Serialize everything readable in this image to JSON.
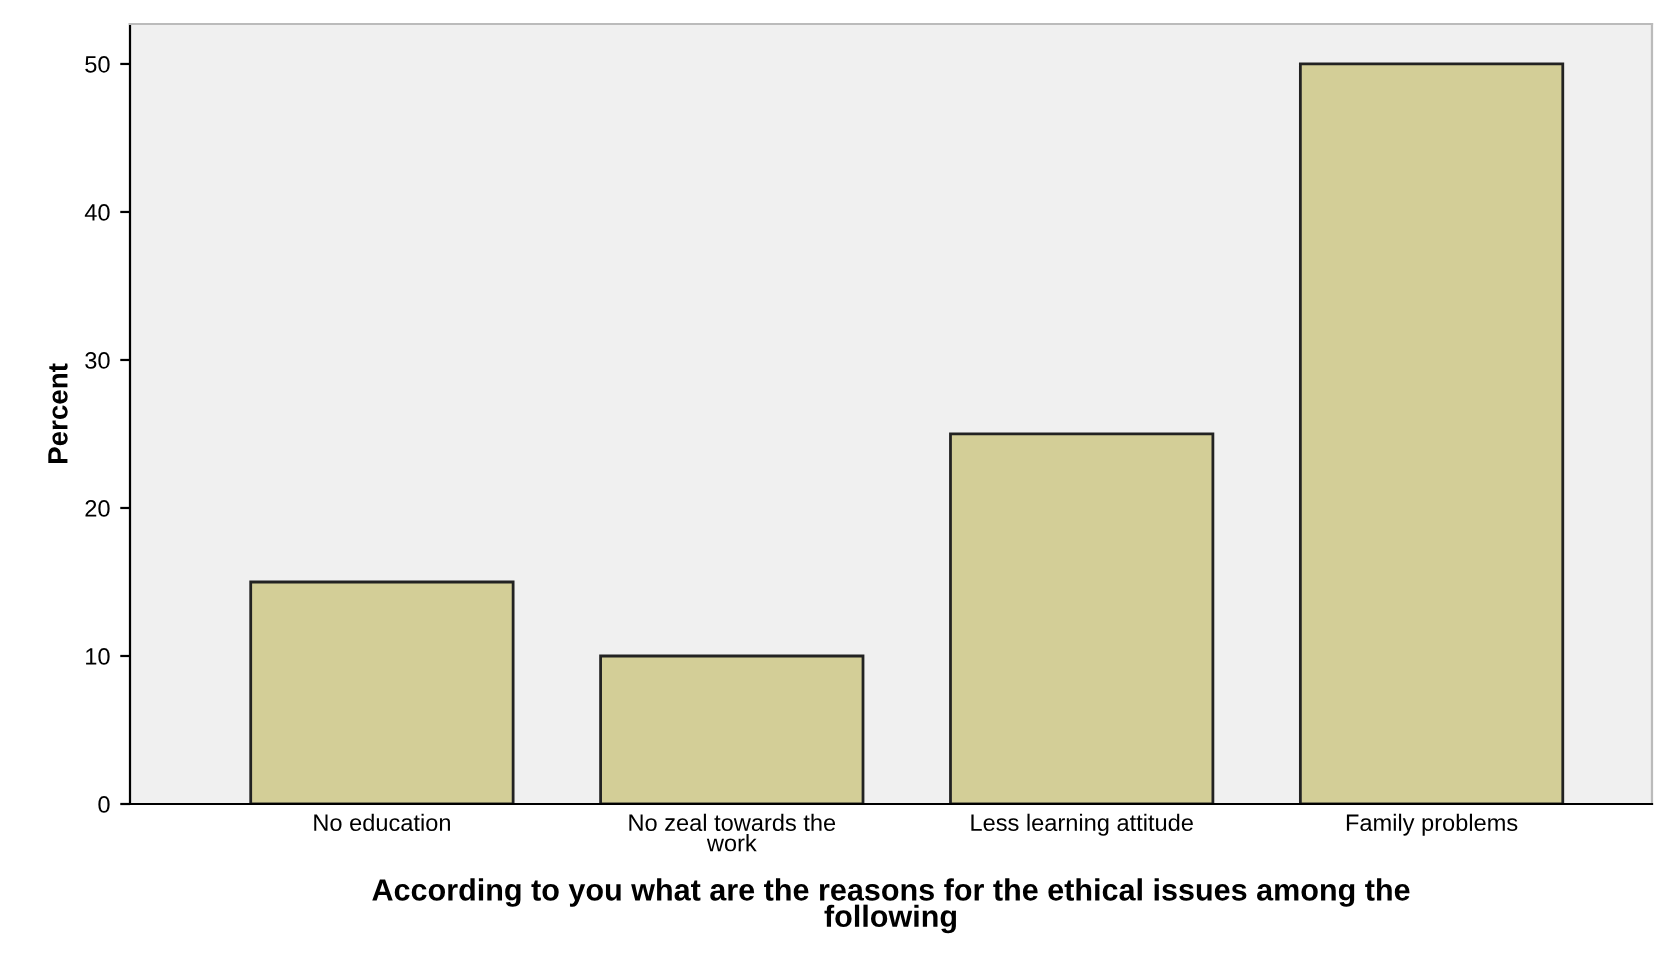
{
  "chart_data": {
    "type": "bar",
    "xlabel": "According to you what are the reasons for the ethical issues among the\nfollowing",
    "ylabel": "Percent",
    "categories": [
      "No education",
      "No zeal towards the\nwork",
      "Less learning attitude",
      "Family problems"
    ],
    "values": [
      15,
      10,
      25,
      50
    ],
    "color": "#d3ce97",
    "ylim": [
      0,
      52.7
    ],
    "yticks": [
      0,
      10,
      20,
      30,
      40,
      50
    ],
    "grid": false,
    "legend": false
  }
}
